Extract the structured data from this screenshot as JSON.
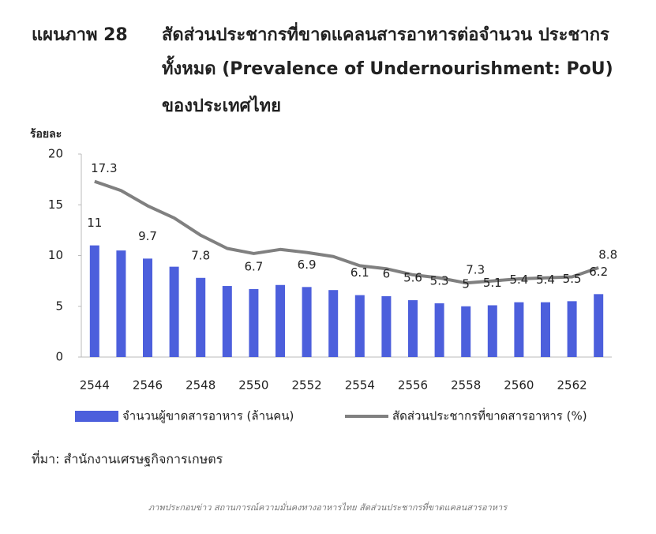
{
  "chart_data": {
    "type": "bar_line",
    "figure_label": "แผนภาพ 28",
    "title_lines": [
      "สัดส่วนประชากรที่ขาดแคลนสารอาหารต่อจำนวน ประชากร",
      "ทั้งหมด (Prevalence of Undernourishment: PoU)",
      "ของประเทศไทย"
    ],
    "y_label": "ร้อยละ",
    "categories": [
      "2544",
      null,
      "2546",
      null,
      "2548",
      null,
      "2550",
      null,
      "2552",
      null,
      "2554",
      null,
      "2556",
      null,
      "2558",
      null,
      "2560",
      null,
      "2562",
      null
    ],
    "series": [
      {
        "name": "จำนวนผู้ขาดสารอาหาร (ล้านคน)",
        "type": "bar",
        "color": "#4c5fdc",
        "values": [
          11,
          10.5,
          9.7,
          8.9,
          7.8,
          7.0,
          6.7,
          7.1,
          6.9,
          6.6,
          6.1,
          6,
          5.6,
          5.3,
          5,
          5.1,
          5.4,
          5.4,
          5.5,
          6.2
        ],
        "value_labels": [
          "11",
          null,
          "9.7",
          null,
          "7.8",
          null,
          "6.7",
          null,
          "6.9",
          null,
          "6.1",
          "6",
          "5.6",
          "5.3",
          "5",
          "5.1",
          "5.4",
          "5.4",
          "5.5",
          "6.2"
        ]
      },
      {
        "name": "สัดส่วนประชากรที่ขาดสารอาหาร (%)",
        "type": "line",
        "color": "#808080",
        "values": [
          17.3,
          16.4,
          14.9,
          13.7,
          12.0,
          10.7,
          10.2,
          10.6,
          10.3,
          9.9,
          9.0,
          8.7,
          8.1,
          7.8,
          7.3,
          7.5,
          7.7,
          7.8,
          7.9,
          8.8
        ],
        "value_labels": [
          "17.3",
          null,
          null,
          null,
          null,
          null,
          null,
          null,
          null,
          null,
          null,
          null,
          null,
          null,
          "7.3",
          null,
          null,
          null,
          null,
          "8.8"
        ]
      }
    ],
    "ylim": [
      0,
      20
    ],
    "yticks": [
      0,
      5,
      10,
      15,
      20
    ],
    "grid": false,
    "source": "ที่มา: สำนักงานเศรษฐกิจการเกษตร",
    "caption": "ภาพประกอบข่าว สถานการณ์ความมั่นคงทางอาหารไทย สัดส่วนประชากรที่ขาดแคลนสารอาหาร"
  }
}
